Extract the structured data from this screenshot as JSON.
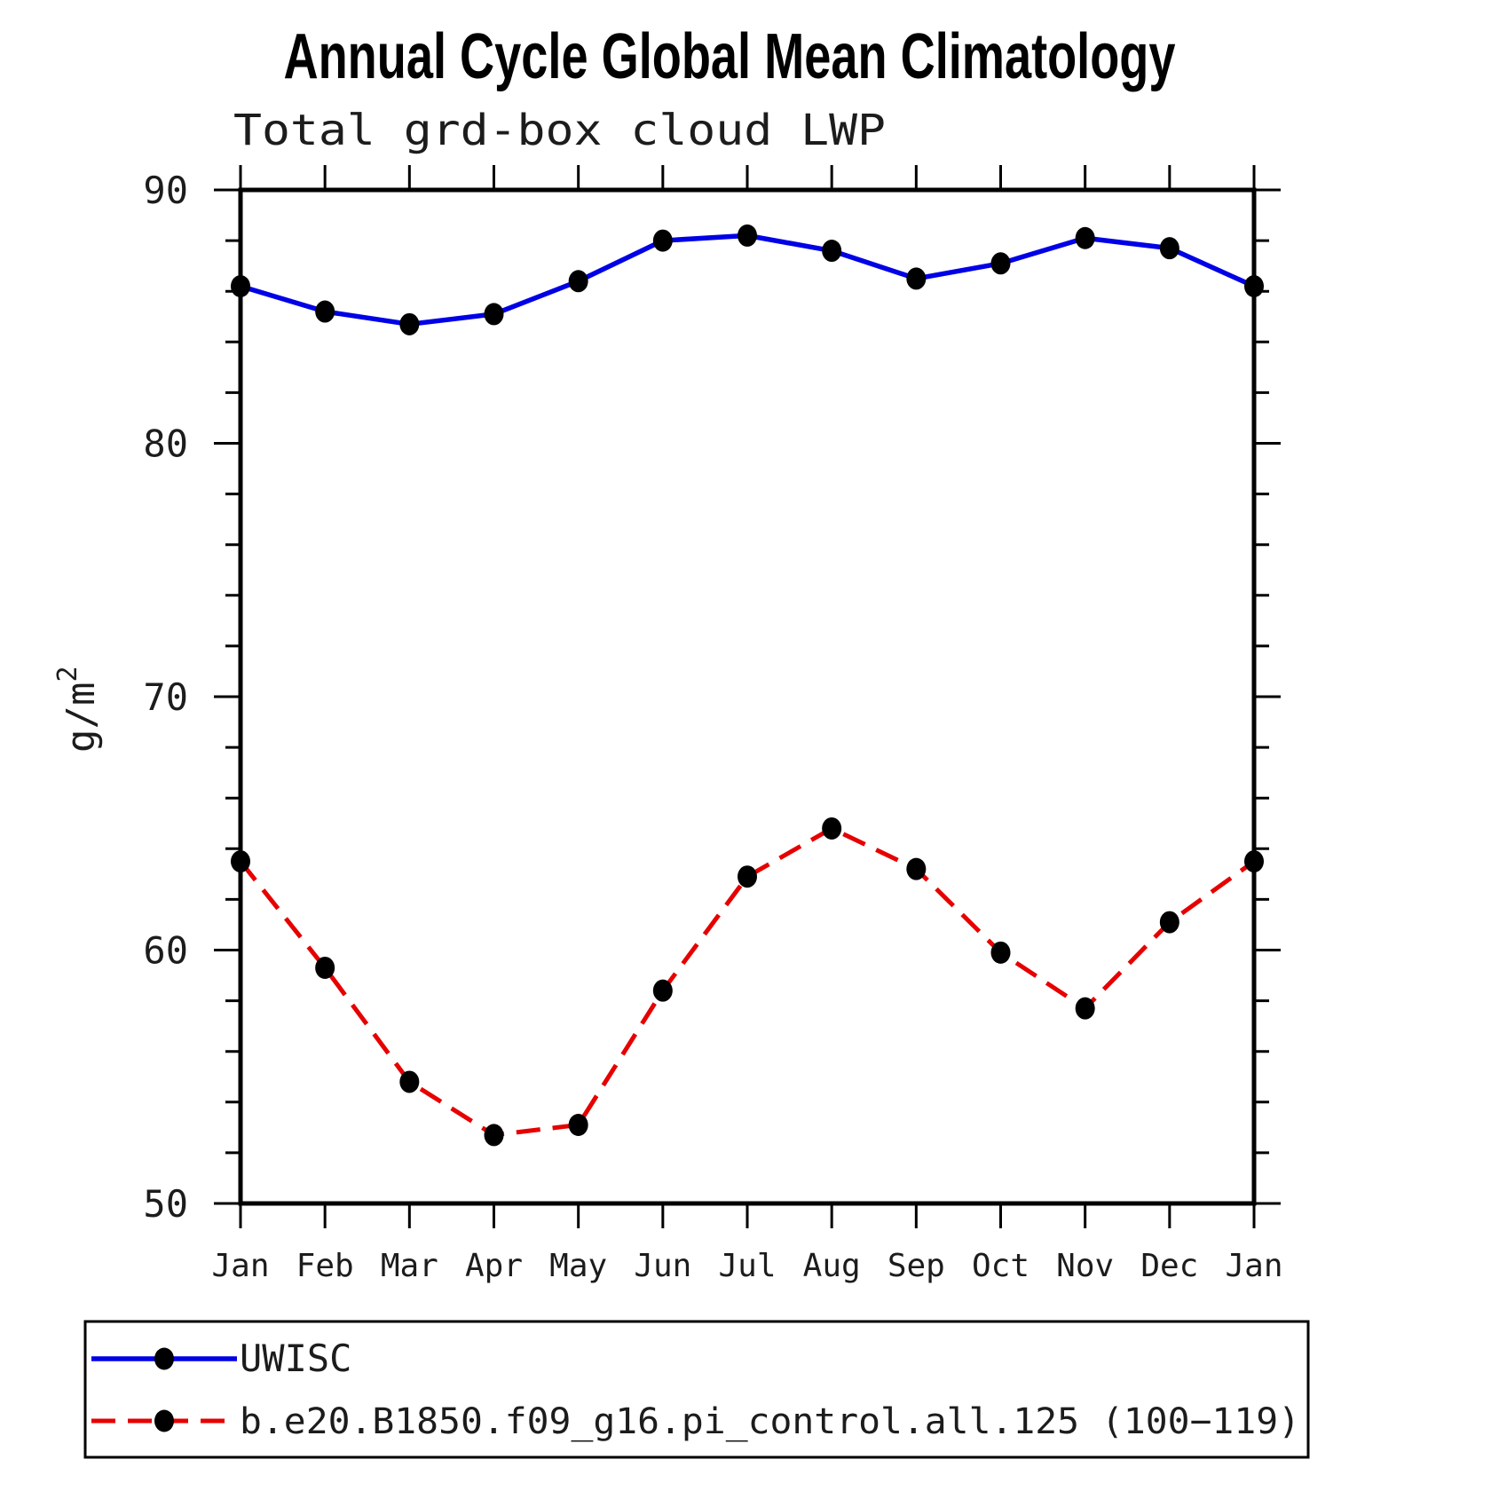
{
  "title": "Annual Cycle Global Mean Climatology",
  "subtitle": "Total grd-box cloud LWP",
  "axes": {
    "ylabel_base": "g/m",
    "ylabel_sup": "2",
    "ytick_labels": [
      "90",
      "80",
      "70",
      "60",
      "50"
    ]
  },
  "chart_data": {
    "type": "line",
    "x": [
      "Jan",
      "Feb",
      "Mar",
      "Apr",
      "May",
      "Jun",
      "Jul",
      "Aug",
      "Sep",
      "Oct",
      "Nov",
      "Dec",
      "Jan"
    ],
    "title": "Annual Cycle Global Mean Climatology",
    "subtitle": "Total grd-box cloud LWP",
    "ylabel": "g/m2",
    "ylim": [
      50,
      90
    ],
    "ytick_major": 10,
    "ytick_minor": 2,
    "grid": false,
    "legend_position": "bottom",
    "series": [
      {
        "name": "UWISC",
        "style": "solid",
        "color": "#0000e6",
        "marker": "filled-circle",
        "marker_color": "#000000",
        "values": [
          86.2,
          85.2,
          84.7,
          85.1,
          86.4,
          88.0,
          88.2,
          87.6,
          86.5,
          87.1,
          88.1,
          87.7,
          86.2
        ]
      },
      {
        "name": "b.e20.B1850.f09_g16.pi_control.all.125 (100−119)",
        "style": "dashed",
        "color": "#e60000",
        "marker": "filled-circle",
        "marker_color": "#000000",
        "values": [
          63.5,
          59.3,
          54.8,
          52.7,
          53.1,
          58.4,
          62.9,
          64.8,
          63.2,
          59.9,
          57.7,
          61.1,
          63.5
        ]
      }
    ]
  }
}
